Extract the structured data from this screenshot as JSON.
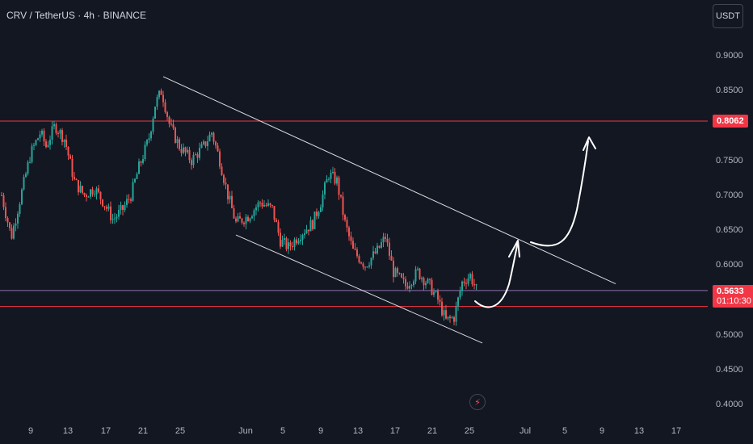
{
  "header": {
    "symbol_line": "CRV / TetherUS · 4h · BINANCE",
    "currency_button": "USDT"
  },
  "colors": {
    "background": "#131722",
    "up": "#26a69a",
    "down": "#ef5350",
    "level_line": "#f23645",
    "current_price_line": "#8e6fa8",
    "channel_line": "#ffffff",
    "arrow": "#ffffff"
  },
  "chart_data": {
    "type": "candlestick",
    "symbol": "CRV / TetherUS",
    "interval": "4h",
    "exchange": "BINANCE",
    "y_axis": {
      "ticks": [
        "0.9000",
        "0.8500",
        "0.8000",
        "0.7500",
        "0.7000",
        "0.6500",
        "0.6000",
        "0.5500",
        "0.5000",
        "0.4500",
        "0.4000"
      ],
      "ylim": [
        0.39,
        0.935
      ]
    },
    "x_axis": {
      "ticks": [
        "9",
        "13",
        "17",
        "21",
        "25",
        "Jun",
        "5",
        "9",
        "13",
        "17",
        "21",
        "25",
        "Jul",
        "5",
        "9",
        "13",
        "17"
      ]
    },
    "price_path": [
      {
        "x": 0,
        "close": 0.7
      },
      {
        "x": 0.4,
        "close": 0.68
      },
      {
        "x": 1.2,
        "close": 0.64
      },
      {
        "x": 2.4,
        "close": 0.7
      },
      {
        "x": 3.6,
        "close": 0.76
      },
      {
        "x": 4.8,
        "close": 0.79
      },
      {
        "x": 5.5,
        "close": 0.77
      },
      {
        "x": 6.6,
        "close": 0.8
      },
      {
        "x": 7.8,
        "close": 0.78
      },
      {
        "x": 9.0,
        "close": 0.72
      },
      {
        "x": 10.2,
        "close": 0.7
      },
      {
        "x": 11.5,
        "close": 0.71
      },
      {
        "x": 12.6,
        "close": 0.69
      },
      {
        "x": 13.8,
        "close": 0.665
      },
      {
        "x": 15.0,
        "close": 0.68
      },
      {
        "x": 16.0,
        "close": 0.7
      },
      {
        "x": 17.0,
        "close": 0.74
      },
      {
        "x": 18.2,
        "close": 0.78
      },
      {
        "x": 19.0,
        "close": 0.83
      },
      {
        "x": 19.8,
        "close": 0.85
      },
      {
        "x": 20.8,
        "close": 0.8
      },
      {
        "x": 22.0,
        "close": 0.77
      },
      {
        "x": 23.5,
        "close": 0.75
      },
      {
        "x": 25.0,
        "close": 0.77
      },
      {
        "x": 26.0,
        "close": 0.79
      },
      {
        "x": 27.0,
        "close": 0.75
      },
      {
        "x": 28.0,
        "close": 0.7
      },
      {
        "x": 29.0,
        "close": 0.66
      },
      {
        "x": 30.5,
        "close": 0.67
      },
      {
        "x": 32.0,
        "close": 0.69
      },
      {
        "x": 33.5,
        "close": 0.68
      },
      {
        "x": 34.5,
        "close": 0.635
      },
      {
        "x": 35.5,
        "close": 0.625
      },
      {
        "x": 37.0,
        "close": 0.645
      },
      {
        "x": 38.5,
        "close": 0.66
      },
      {
        "x": 39.5,
        "close": 0.69
      },
      {
        "x": 40.5,
        "close": 0.73
      },
      {
        "x": 41.5,
        "close": 0.72
      },
      {
        "x": 42.5,
        "close": 0.66
      },
      {
        "x": 43.5,
        "close": 0.62
      },
      {
        "x": 45.0,
        "close": 0.6
      },
      {
        "x": 46.5,
        "close": 0.62
      },
      {
        "x": 47.5,
        "close": 0.64
      },
      {
        "x": 48.5,
        "close": 0.59
      },
      {
        "x": 50.0,
        "close": 0.57
      },
      {
        "x": 51.5,
        "close": 0.59
      },
      {
        "x": 53.0,
        "close": 0.57
      },
      {
        "x": 54.0,
        "close": 0.55
      },
      {
        "x": 55.0,
        "close": 0.52
      },
      {
        "x": 56.0,
        "close": 0.525
      },
      {
        "x": 57.0,
        "close": 0.575
      },
      {
        "x": 58.0,
        "close": 0.585
      },
      {
        "x": 58.8,
        "close": 0.5633
      }
    ],
    "levels": [
      {
        "label": "0.8062",
        "value": 0.8062
      },
      {
        "value": 0.5405
      }
    ],
    "current_price": {
      "label": "0.5633",
      "value": 0.5633,
      "countdown": "01:10:30"
    },
    "channel": {
      "upper": [
        {
          "x": 20,
          "y": 0.87
        },
        {
          "x": 76,
          "y": 0.573
        }
      ],
      "lower": [
        {
          "x": 29,
          "y": 0.643
        },
        {
          "x": 59.5,
          "y": 0.488
        }
      ]
    }
  }
}
